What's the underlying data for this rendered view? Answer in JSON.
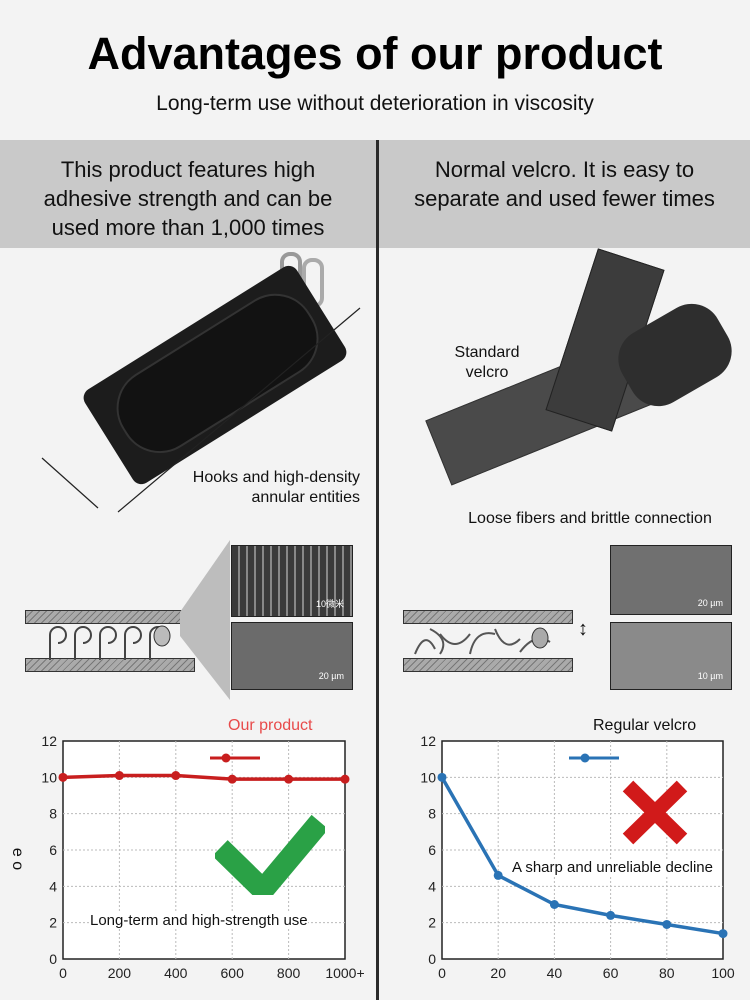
{
  "header": {
    "title": "Advantages of our product",
    "subtitle": "Long-term use without deterioration in viscosity"
  },
  "left": {
    "heading": "This product features high adhesive strength and can be used more than 1,000 times",
    "caption": "Hooks and high-density annular entities",
    "micro_labels": [
      "10微米",
      "20 µm"
    ]
  },
  "right": {
    "heading": "Normal velcro. It is easy to separate and used fewer times",
    "photo_label": "Standard velcro",
    "caption": "Loose fibers and brittle connection",
    "micro_labels": [
      "20 µm",
      "10 µm"
    ]
  },
  "icons": {
    "left_mark": "check-mark-icon",
    "right_mark": "cross-mark-icon"
  },
  "colors": {
    "our_product": "#c81e1e",
    "regular": "#2a73b5",
    "check": "#2aa146",
    "cross": "#d11a1a",
    "band": "#c9c9c9"
  },
  "chart_data": [
    {
      "type": "line",
      "title": "Our product",
      "ylabel": "e o",
      "x": [
        "0",
        "200",
        "400",
        "600",
        "800",
        "1000+"
      ],
      "series": [
        {
          "values": [
            10.0,
            10.1,
            10.1,
            9.9,
            9.9,
            9.9
          ],
          "color": "#c81e1e"
        }
      ],
      "ylim": [
        0,
        12
      ],
      "yticks": [
        "0",
        "2",
        "4",
        "6",
        "8",
        "10",
        "12"
      ],
      "grid": true,
      "annotation": "Long-term and high-strength use"
    },
    {
      "type": "line",
      "title": "Regular velcro",
      "x": [
        "0",
        "20",
        "40",
        "60",
        "80",
        "100"
      ],
      "series": [
        {
          "values": [
            10.0,
            4.6,
            3.0,
            2.4,
            1.9,
            1.4
          ],
          "color": "#2a73b5"
        }
      ],
      "ylim": [
        0,
        12
      ],
      "yticks": [
        "0",
        "2",
        "4",
        "6",
        "8",
        "10",
        "12"
      ],
      "grid": true,
      "annotation": "A sharp and unreliable decline"
    }
  ]
}
